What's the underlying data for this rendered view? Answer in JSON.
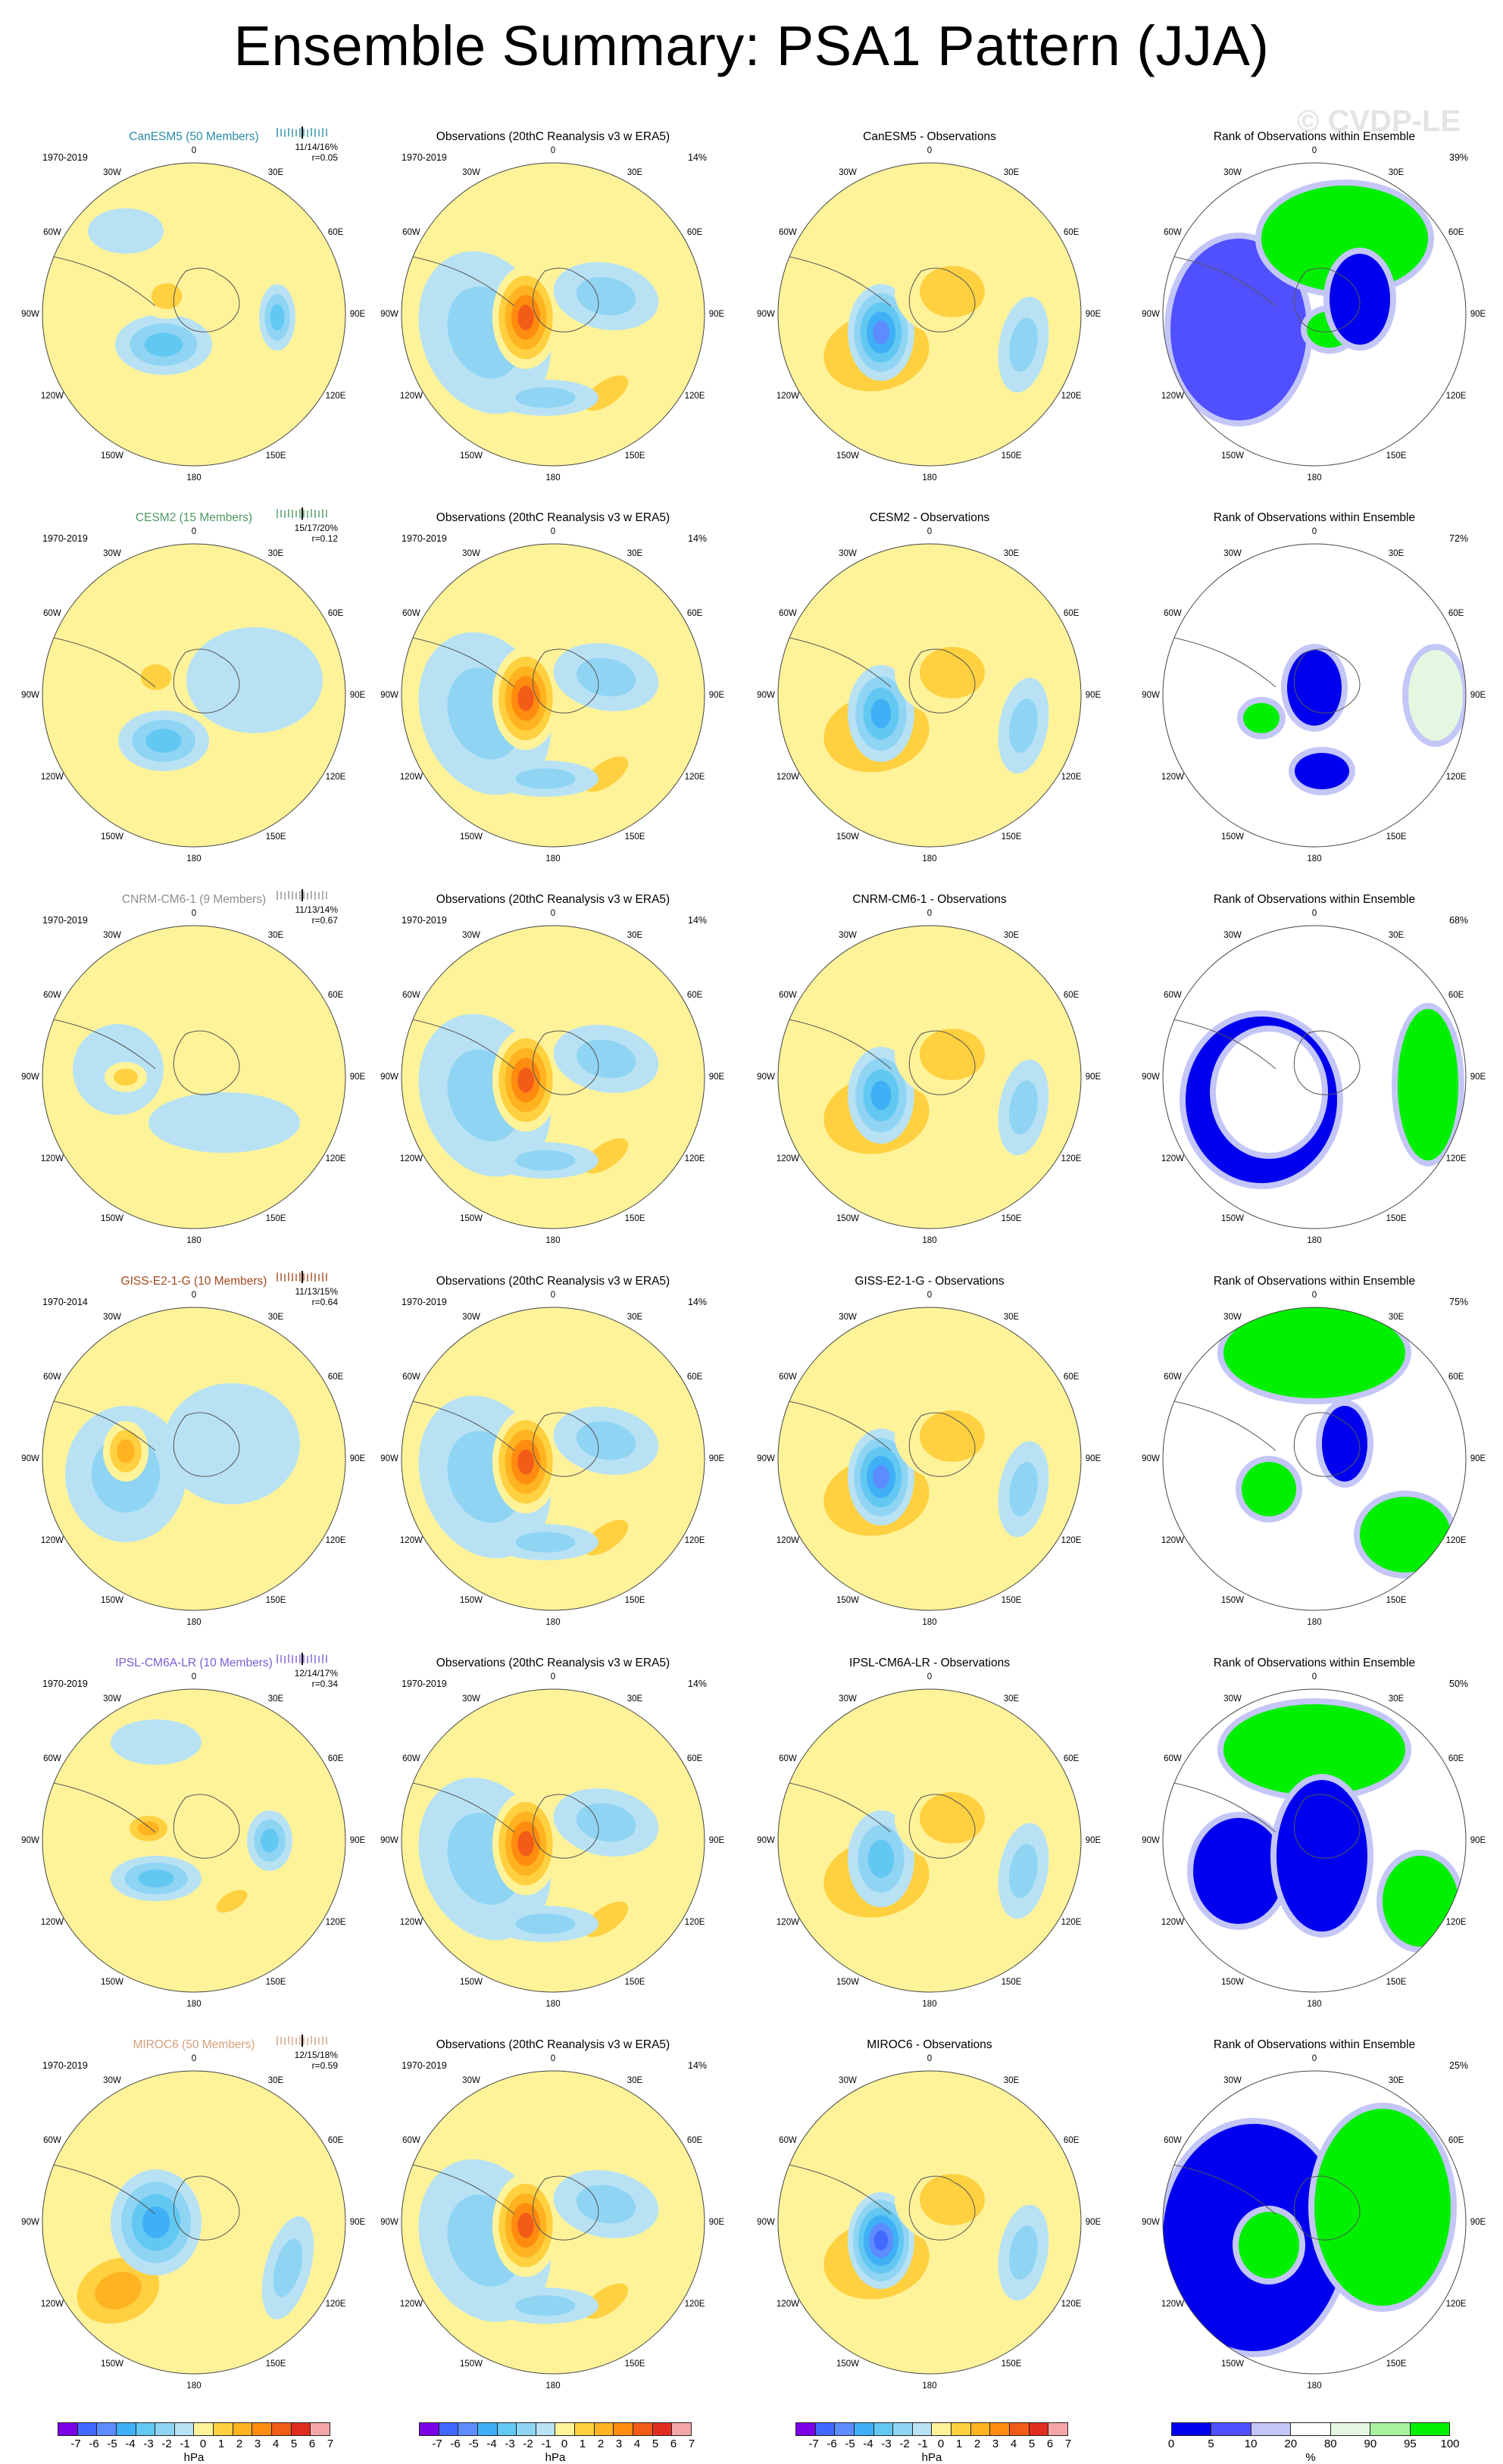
{
  "title": "Ensemble Summary: PSA1 Pattern (JJA)",
  "watermark": "© CVDP-LE",
  "lon_labels": [
    "0",
    "30E",
    "60E",
    "90E",
    "120E",
    "150E",
    "180",
    "150W",
    "120W",
    "90W",
    "60W",
    "30W"
  ],
  "colors": {
    "neg7": "#7a00e6",
    "neg6": "#4169ff",
    "neg5": "#5c8cff",
    "neg4": "#3fb0f5",
    "neg3": "#62c8f2",
    "neg2": "#8fd4f3",
    "neg1": "#b8e2f4",
    "pos1": "#fff39a",
    "pos2": "#ffd040",
    "pos3": "#ffb320",
    "pos4": "#ff8c0f",
    "pos5": "#f25c18",
    "pos6": "#e02d20",
    "pos7": "#f4a6a6",
    "rank_0_5": "#0000ee",
    "rank_5_10": "#5050ff",
    "rank_10_20": "#c4c6f8",
    "rank_20_80": "#ffffff",
    "rank_80_90": "#e4f7e0",
    "rank_90_95": "#a8f2a0",
    "rank_95_100": "#00f000",
    "coast": "#555555"
  },
  "rows": [
    {
      "model": {
        "title": "CanESM5 (50 Members)",
        "title_color": "#2a8ca6",
        "period": "1970-2019",
        "stats_line1": "11/14/16%",
        "stats_line2": "r=0.05"
      },
      "obs": {
        "title": "Observations (20thC Reanalysis v3 w ERA5)",
        "period": "1970-2019",
        "pct": "14%"
      },
      "diff": {
        "title": "CanESM5 - Observations"
      },
      "rank": {
        "title": "Rank of Observations within Ensemble",
        "pct": "39%"
      }
    },
    {
      "model": {
        "title": "CESM2 (15 Members)",
        "title_color": "#4f9a63",
        "period": "1970-2019",
        "stats_line1": "15/17/20%",
        "stats_line2": "r=0.12"
      },
      "obs": {
        "title": "Observations (20thC Reanalysis v3 w ERA5)",
        "period": "1970-2019",
        "pct": "14%"
      },
      "diff": {
        "title": "CESM2 - Observations"
      },
      "rank": {
        "title": "Rank of Observations within Ensemble",
        "pct": "72%"
      }
    },
    {
      "model": {
        "title": "CNRM-CM6-1 (9 Members)",
        "title_color": "#8e8e8e",
        "period": "1970-2019",
        "stats_line1": "11/13/14%",
        "stats_line2": "r=0.67"
      },
      "obs": {
        "title": "Observations (20thC Reanalysis v3 w ERA5)",
        "period": "1970-2019",
        "pct": "14%"
      },
      "diff": {
        "title": "CNRM-CM6-1 - Observations"
      },
      "rank": {
        "title": "Rank of Observations within Ensemble",
        "pct": "68%"
      }
    },
    {
      "model": {
        "title": "GISS-E2-1-G (10 Members)",
        "title_color": "#a3491f",
        "period": "1970-2014",
        "stats_line1": "11/13/15%",
        "stats_line2": "r=0.64"
      },
      "obs": {
        "title": "Observations (20thC Reanalysis v3 w ERA5)",
        "period": "1970-2019",
        "pct": "14%"
      },
      "diff": {
        "title": "GISS-E2-1-G - Observations"
      },
      "rank": {
        "title": "Rank of Observations within Ensemble",
        "pct": "75%"
      }
    },
    {
      "model": {
        "title": "IPSL-CM6A-LR (10 Members)",
        "title_color": "#7b5ed3",
        "period": "1970-2019",
        "stats_line1": "12/14/17%",
        "stats_line2": "r=0.34"
      },
      "obs": {
        "title": "Observations (20thC Reanalysis v3 w ERA5)",
        "period": "1970-2019",
        "pct": "14%"
      },
      "diff": {
        "title": "IPSL-CM6A-LR - Observations"
      },
      "rank": {
        "title": "Rank of Observations within Ensemble",
        "pct": "50%"
      }
    },
    {
      "model": {
        "title": "MIROC6 (50 Members)",
        "title_color": "#d4a07c",
        "period": "1970-2019",
        "stats_line1": "12/15/18%",
        "stats_line2": "r=0.59"
      },
      "obs": {
        "title": "Observations (20thC Reanalysis v3 w ERA5)",
        "period": "1970-2019",
        "pct": "14%"
      },
      "diff": {
        "title": "MIROC6 - Observations"
      },
      "rank": {
        "title": "Rank of Observations within Ensemble",
        "pct": "25%"
      }
    }
  ],
  "colorbar_hpa": {
    "labels": [
      "-7",
      "-6",
      "-5",
      "-4",
      "-3",
      "-2",
      "-1",
      "0",
      "1",
      "2",
      "3",
      "4",
      "5",
      "6",
      "7"
    ],
    "unit": "hPa"
  },
  "colorbar_rank": {
    "labels": [
      "0",
      "5",
      "10",
      "20",
      "80",
      "90",
      "95",
      "100"
    ],
    "unit": "%"
  }
}
